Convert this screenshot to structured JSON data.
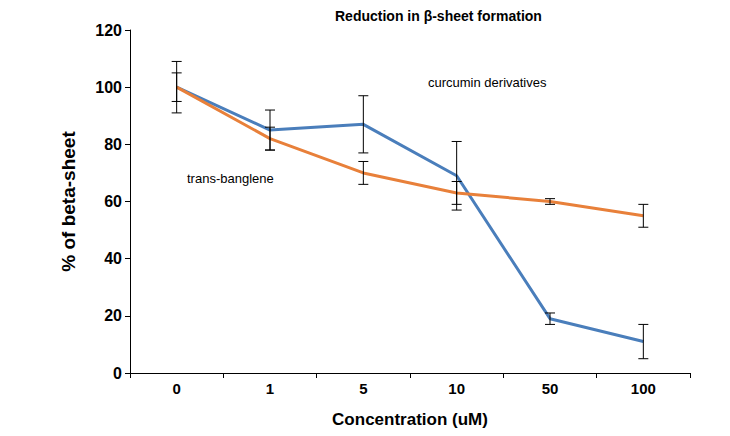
{
  "chart_data": {
    "type": "line",
    "title": "Reduction in β-sheet formation",
    "x_label": "Concentration (uM)",
    "y_label": "% of beta-sheet",
    "categories": [
      "0",
      "1",
      "5",
      "10",
      "50",
      "100"
    ],
    "series": [
      {
        "name": "curcumin derivatives",
        "color": "#4a7ebb",
        "values": [
          100,
          85,
          87,
          69,
          19,
          11
        ],
        "errors": [
          9,
          7,
          10,
          12,
          2,
          6
        ]
      },
      {
        "name": "trans-banglene",
        "color": "#e8803a",
        "values": [
          100,
          82,
          70,
          63,
          60,
          55
        ],
        "errors": [
          5,
          4,
          4,
          4,
          1,
          4
        ]
      }
    ],
    "ylim": [
      0,
      120
    ],
    "yticks": [
      0,
      20,
      40,
      60,
      80,
      100,
      120
    ],
    "grid": false
  }
}
